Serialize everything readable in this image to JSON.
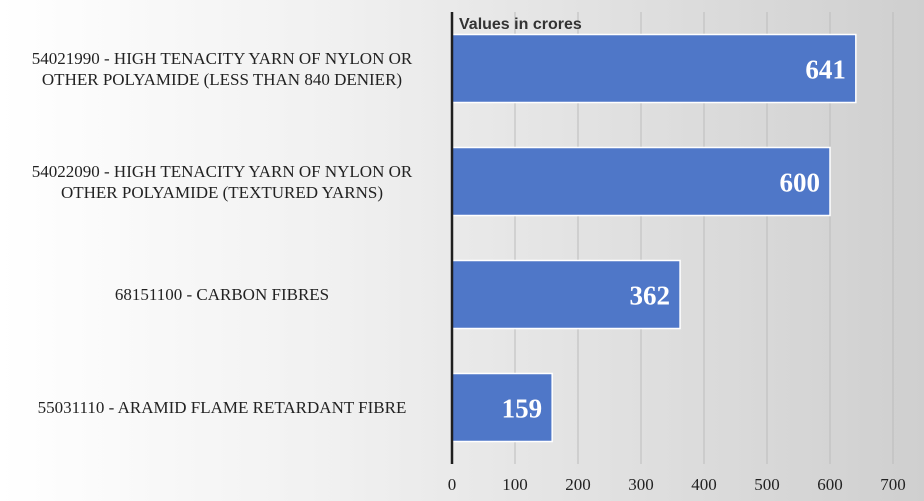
{
  "chart_data": {
    "type": "bar",
    "orientation": "horizontal",
    "title": "Values in crores",
    "categories": [
      "54021990 - High tenacity yarn of nylon or other polyamide (less than 840 denier)",
      "54022090 - High tenacity yarn of nylon or other polyamide (textured yarns)",
      "68151100 - Carbon fibres",
      "55031110 - Aramid flame retardant fibre"
    ],
    "values": [
      641,
      600,
      362,
      159
    ],
    "xlim": [
      0,
      700
    ],
    "xticks": [
      "0",
      "100",
      "200",
      "300",
      "400",
      "500",
      "600",
      "700"
    ],
    "grid": true,
    "data_labels": true,
    "colors": {
      "bar": "#4f77c8",
      "bar_edge": "#ffffff",
      "grid": "#bcbcbc",
      "label": "#ffffff"
    }
  }
}
